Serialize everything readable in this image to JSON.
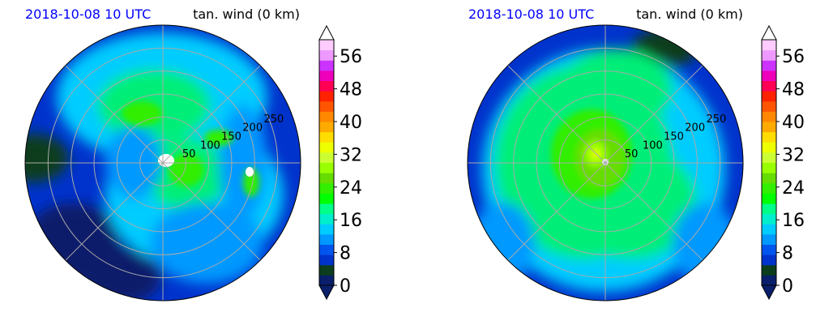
{
  "chart_data": [
    {
      "type": "polar-contour",
      "title_left": "2018-10-08 10 UTC",
      "title_right": "tan. wind (0 km)",
      "radial_ticks": [
        50,
        100,
        150,
        200,
        250
      ],
      "radial_tick_labels": [
        "50",
        "100",
        "150",
        "200",
        "250"
      ],
      "colorbar": {
        "ticks": [
          0,
          8,
          16,
          24,
          32,
          40,
          48,
          56
        ],
        "tick_labels": [
          "0",
          "8",
          "16",
          "24",
          "32",
          "40",
          "48",
          "56"
        ],
        "range": [
          0,
          60
        ],
        "extend": "both"
      },
      "grid": true
    },
    {
      "type": "polar-contour",
      "title_left": "2018-10-08 10 UTC",
      "title_right": "tan. wind (0 km)",
      "radial_ticks": [
        50,
        100,
        150,
        200,
        250
      ],
      "radial_tick_labels": [
        "50",
        "100",
        "150",
        "200",
        "250"
      ],
      "colorbar": {
        "ticks": [
          0,
          8,
          16,
          24,
          32,
          40,
          48,
          56
        ],
        "tick_labels": [
          "0",
          "8",
          "16",
          "24",
          "32",
          "40",
          "48",
          "56"
        ],
        "range": [
          0,
          60
        ],
        "extend": "both"
      },
      "grid": true
    }
  ],
  "colors": {
    "title_left": "#0000ff",
    "colormap": [
      "#0a1f6b",
      "#0b3d1f",
      "#0033cc",
      "#0055ee",
      "#0099ff",
      "#00ccff",
      "#00eecc",
      "#00ff88",
      "#00ff00",
      "#33ee00",
      "#66dd00",
      "#99ff00",
      "#ccff33",
      "#eeff00",
      "#ffdd00",
      "#ffaa00",
      "#ff8800",
      "#ff5500",
      "#ff2200",
      "#ff0055",
      "#ee00bb",
      "#cc33ff",
      "#ee99ff",
      "#ffccff"
    ]
  }
}
